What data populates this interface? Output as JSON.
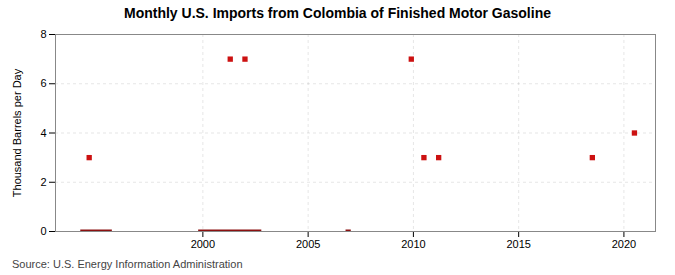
{
  "chart_data": {
    "type": "scatter",
    "title": "Monthly U.S. Imports from Colombia of Finished Motor Gasoline",
    "ylabel": "Thousand Barrels per Day",
    "source": "Source: U.S. Energy Information Administration",
    "xlim": [
      1993,
      2021.5
    ],
    "ylim": [
      0,
      8
    ],
    "xticks": [
      2000,
      2005,
      2010,
      2015,
      2020
    ],
    "yticks": [
      0,
      2,
      4,
      6,
      8
    ],
    "grid": true,
    "series": [
      {
        "type": "scatter",
        "marker": "square",
        "color": "#cc1111",
        "x": [
          1994.6,
          2001.3,
          2002.0,
          2009.9,
          2010.5,
          2011.2,
          2018.5,
          2020.5
        ],
        "values": [
          3,
          7,
          7,
          7,
          3,
          3,
          3,
          4
        ]
      },
      {
        "type": "segment",
        "color": "#8b1010",
        "x_start": [
          1994.2,
          1999.8,
          2006.8
        ],
        "x_end": [
          1995.7,
          2002.8,
          2007.05
        ],
        "values": [
          0,
          0,
          0
        ]
      }
    ]
  }
}
